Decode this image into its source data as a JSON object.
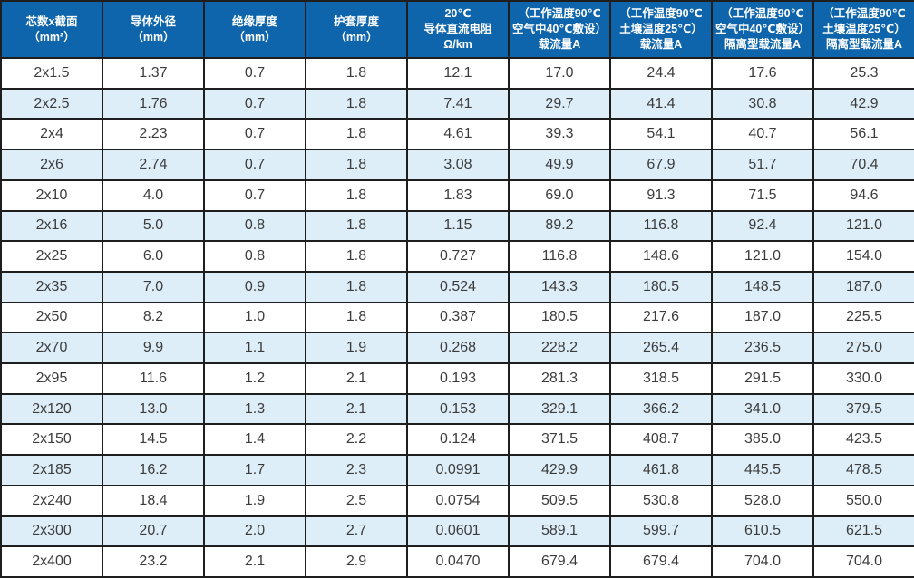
{
  "table": {
    "title": "cable-specification-table",
    "colors": {
      "header_bg": "#0e65ac",
      "header_text": "#ffffff",
      "row_bg": "#ffffff",
      "row_alt_bg": "#ddeef9",
      "border": "#1e1e1e",
      "cell_text": "#3c3c3c"
    },
    "columns": [
      {
        "id": "cores-section",
        "lines": [
          "芯数x截面",
          "（mm²）"
        ]
      },
      {
        "id": "conductor-od",
        "lines": [
          "导体外径",
          "（mm）"
        ]
      },
      {
        "id": "insulation-thickness",
        "lines": [
          "绝缘厚度",
          "（mm）"
        ]
      },
      {
        "id": "sheath-thickness",
        "lines": [
          "护套厚度",
          "（mm）"
        ]
      },
      {
        "id": "dc-resistance",
        "lines": [
          "20℃",
          "导体直流电阻",
          "Ω/km"
        ]
      },
      {
        "id": "ampacity-air",
        "lines": [
          "（工作温度90℃",
          "空气中40℃敷设）",
          "载流量A"
        ]
      },
      {
        "id": "ampacity-soil",
        "lines": [
          "（工作温度90℃",
          "土壤温度25℃）",
          "载流量A"
        ]
      },
      {
        "id": "isolated-ampacity-air",
        "lines": [
          "（工作温度90℃",
          "空气中40℃敷设）",
          "隔离型载流量A"
        ]
      },
      {
        "id": "isolated-ampacity-soil",
        "lines": [
          "（工作温度90℃",
          "土壤温度25℃）",
          "隔离型载流量A"
        ]
      }
    ],
    "rows": [
      [
        "2x1.5",
        "1.37",
        "0.7",
        "1.8",
        "12.1",
        "17.0",
        "24.4",
        "17.6",
        "25.3"
      ],
      [
        "2x2.5",
        "1.76",
        "0.7",
        "1.8",
        "7.41",
        "29.7",
        "41.4",
        "30.8",
        "42.9"
      ],
      [
        "2x4",
        "2.23",
        "0.7",
        "1.8",
        "4.61",
        "39.3",
        "54.1",
        "40.7",
        "56.1"
      ],
      [
        "2x6",
        "2.74",
        "0.7",
        "1.8",
        "3.08",
        "49.9",
        "67.9",
        "51.7",
        "70.4"
      ],
      [
        "2x10",
        "4.0",
        "0.7",
        "1.8",
        "1.83",
        "69.0",
        "91.3",
        "71.5",
        "94.6"
      ],
      [
        "2x16",
        "5.0",
        "0.8",
        "1.8",
        "1.15",
        "89.2",
        "116.8",
        "92.4",
        "121.0"
      ],
      [
        "2x25",
        "6.0",
        "0.8",
        "1.8",
        "0.727",
        "116.8",
        "148.6",
        "121.0",
        "154.0"
      ],
      [
        "2x35",
        "7.0",
        "0.9",
        "1.8",
        "0.524",
        "143.3",
        "180.5",
        "148.5",
        "187.0"
      ],
      [
        "2x50",
        "8.2",
        "1.0",
        "1.8",
        "0.387",
        "180.5",
        "217.6",
        "187.0",
        "225.5"
      ],
      [
        "2x70",
        "9.9",
        "1.1",
        "1.9",
        "0.268",
        "228.2",
        "265.4",
        "236.5",
        "275.0"
      ],
      [
        "2x95",
        "11.6",
        "1.2",
        "2.1",
        "0.193",
        "281.3",
        "318.5",
        "291.5",
        "330.0"
      ],
      [
        "2x120",
        "13.0",
        "1.3",
        "2.1",
        "0.153",
        "329.1",
        "366.2",
        "341.0",
        "379.5"
      ],
      [
        "2x150",
        "14.5",
        "1.4",
        "2.2",
        "0.124",
        "371.5",
        "408.7",
        "385.0",
        "423.5"
      ],
      [
        "2x185",
        "16.2",
        "1.7",
        "2.3",
        "0.0991",
        "429.9",
        "461.8",
        "445.5",
        "478.5"
      ],
      [
        "2x240",
        "18.4",
        "1.9",
        "2.5",
        "0.0754",
        "509.5",
        "530.8",
        "528.0",
        "550.0"
      ],
      [
        "2x300",
        "20.7",
        "2.0",
        "2.7",
        "0.0601",
        "589.1",
        "599.7",
        "610.5",
        "621.5"
      ],
      [
        "2x400",
        "23.2",
        "2.1",
        "2.9",
        "0.0470",
        "679.4",
        "679.4",
        "704.0",
        "704.0"
      ]
    ]
  }
}
